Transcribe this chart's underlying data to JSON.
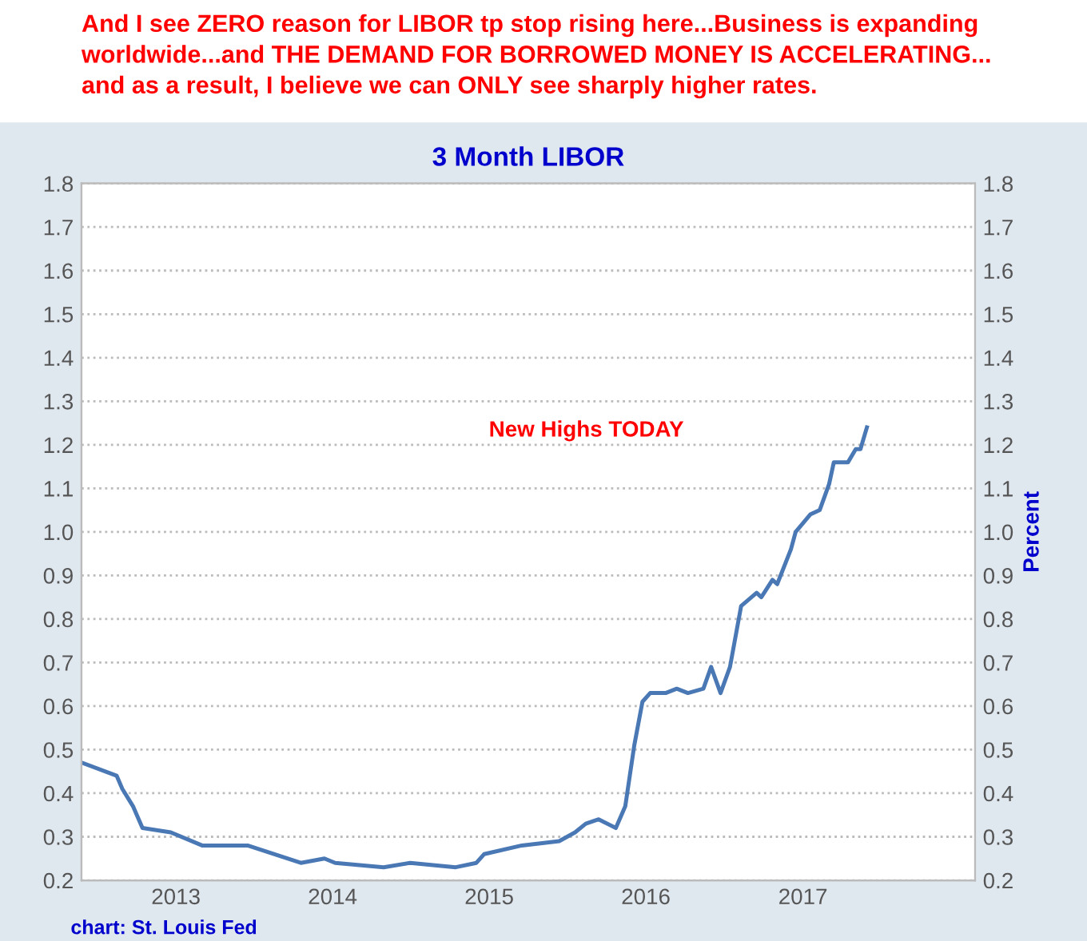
{
  "chart_data": {
    "type": "line",
    "title": "And I see ZERO reason for LIBOR tp stop rising here...Business is expanding\nworldwide...and THE DEMAND FOR BORROWED MONEY IS ACCELERATING...\nand as a result, I believe we can ONLY see sharply higher rates.",
    "subtitle": "3 Month LIBOR",
    "y2label": "Percent",
    "x": [
      "2012-05-27",
      "2012-08-16",
      "2012-08-29",
      "2012-09-23",
      "2012-10-15",
      "2012-12-20",
      "2013-03-03",
      "2013-06-17",
      "2013-10-19",
      "2013-12-13",
      "2014-01-07",
      "2014-04-30",
      "2014-07-01",
      "2014-10-15",
      "2014-12-02",
      "2014-12-20",
      "2015-03-18",
      "2015-06-13",
      "2015-07-20",
      "2015-08-14",
      "2015-09-13",
      "2015-10-23",
      "2015-11-14",
      "2015-12-05",
      "2015-12-24",
      "2016-01-11",
      "2016-02-16",
      "2016-03-13",
      "2016-04-08",
      "2016-05-14",
      "2016-06-01",
      "2016-06-23",
      "2016-07-15",
      "2016-08-10",
      "2016-09-15",
      "2016-09-26",
      "2016-10-22",
      "2016-11-02",
      "2016-12-04",
      "2016-12-15",
      "2017-01-18",
      "2017-02-09",
      "2017-03-03",
      "2017-03-14",
      "2017-04-16",
      "2017-05-04",
      "2017-05-15",
      "2017-05-30"
    ],
    "series": [
      {
        "color": "#4a78b4",
        "values": [
          0.47,
          0.44,
          0.41,
          0.37,
          0.32,
          0.31,
          0.28,
          0.28,
          0.24,
          0.25,
          0.24,
          0.23,
          0.24,
          0.23,
          0.24,
          0.26,
          0.28,
          0.29,
          0.31,
          0.33,
          0.34,
          0.32,
          0.37,
          0.51,
          0.61,
          0.63,
          0.63,
          0.64,
          0.63,
          0.64,
          0.69,
          0.63,
          0.69,
          0.83,
          0.86,
          0.85,
          0.89,
          0.88,
          0.96,
          1.0,
          1.04,
          1.05,
          1.11,
          1.16,
          1.16,
          1.19,
          1.19,
          1.24
        ]
      }
    ],
    "xlim": [
      "2012-05-26",
      "2018-02-06"
    ],
    "xticks": [
      {
        "value": "2013-01-01",
        "label": "2013"
      },
      {
        "value": "2014-01-01",
        "label": "2014"
      },
      {
        "value": "2015-01-01",
        "label": "2015"
      },
      {
        "value": "2016-01-01",
        "label": "2016"
      },
      {
        "value": "2017-01-01",
        "label": "2017"
      }
    ],
    "ylim": [
      0.2,
      1.8
    ],
    "yticks": [
      0.2,
      0.3,
      0.4,
      0.5,
      0.6,
      0.7,
      0.8,
      0.9,
      {
        "value": 1,
        "label": "1.0"
      },
      1.1,
      1.2,
      1.3,
      1.4,
      1.5,
      1.6,
      1.7,
      1.8
    ],
    "y2lim": [
      0.2,
      1.8
    ],
    "y2ticks": [
      0.2,
      0.3,
      0.4,
      0.5,
      0.6,
      0.7,
      0.8,
      0.9,
      {
        "value": 1,
        "label": "1.0"
      },
      1.1,
      1.2,
      1.3,
      1.4,
      1.5,
      1.6,
      1.7,
      1.8
    ],
    "grid": "y",
    "legend": false,
    "marker": "none",
    "line_style": "solid",
    "annotations": [
      "New Highs TODAY",
      "chart: St. Louis Fed"
    ]
  }
}
